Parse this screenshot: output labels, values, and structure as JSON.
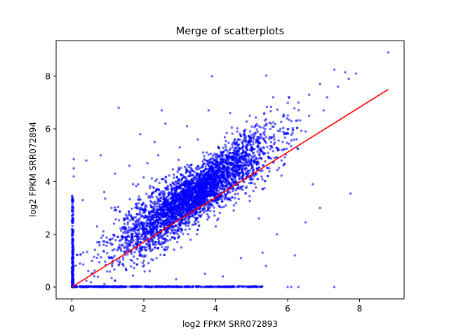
{
  "chart_data": {
    "type": "scatter",
    "title": "Merge of scatterplots",
    "xlabel": "log2 FPKM SRR072893",
    "ylabel": "log2 FPKM SRR072894",
    "xlim": [
      -0.44,
      9.24
    ],
    "ylim": [
      -0.45,
      9.35
    ],
    "xticks": [
      0,
      2,
      4,
      6,
      8
    ],
    "yticks": [
      0,
      2,
      4,
      6,
      8
    ],
    "grid": false,
    "legend": "none",
    "series": [
      {
        "kind": "points",
        "color": "#0000ff",
        "opacity": 0.6,
        "points": [
          [
            8.8,
            8.9
          ],
          [
            7.3,
            8.25
          ],
          [
            7.6,
            8.15
          ],
          [
            7.9,
            8.1
          ],
          [
            7.7,
            7.9
          ],
          [
            7.4,
            7.6
          ],
          [
            6.9,
            7.7
          ],
          [
            6.6,
            7.3
          ],
          [
            7.1,
            7.2
          ],
          [
            6.3,
            7.0
          ],
          [
            6.6,
            6.5
          ],
          [
            7.0,
            6.7
          ],
          [
            3.9,
            8.0
          ],
          [
            5.6,
            7.2
          ],
          [
            5.9,
            6.5
          ],
          [
            6.5,
            5.9
          ],
          [
            6.9,
            3.0
          ],
          [
            7.75,
            3.55
          ],
          [
            6.5,
            2.45
          ],
          [
            7.3,
            0.0
          ],
          [
            6.2,
            1.2
          ],
          [
            5.3,
            1.3
          ],
          [
            5.4,
            0.8
          ],
          [
            6.7,
            3.9
          ],
          [
            1.3,
            6.8
          ],
          [
            2.5,
            6.7
          ],
          [
            2.6,
            6.2
          ],
          [
            3.8,
            6.7
          ],
          [
            4.4,
            6.6
          ],
          [
            1.9,
            5.8
          ],
          [
            2.3,
            5.5
          ],
          [
            3.2,
            6.1
          ],
          [
            0.8,
            5.0
          ],
          [
            0.4,
            4.8
          ],
          [
            1.2,
            4.3
          ],
          [
            0.9,
            3.6
          ],
          [
            0.3,
            3.3
          ],
          [
            1.6,
            4.6
          ],
          [
            4.7,
            1.1
          ],
          [
            3.7,
            0.5
          ],
          [
            2.9,
            0.3
          ],
          [
            4.2,
            0.4
          ],
          [
            5.7,
            2.0
          ],
          [
            5.2,
            2.6
          ],
          [
            0.05,
            4.85
          ],
          [
            0.05,
            4.5
          ],
          [
            0.05,
            4.2
          ],
          [
            6.1,
            0.0
          ],
          [
            6.3,
            0.0
          ],
          [
            6.0,
            0.0
          ],
          [
            4.6,
            5.9
          ],
          [
            5.2,
            6.1
          ],
          [
            4.9,
            5.4
          ],
          [
            5.5,
            5.7
          ],
          [
            5.8,
            6.0
          ],
          [
            6.1,
            6.3
          ],
          [
            4.3,
            5.2
          ],
          [
            2.1,
            4.7
          ],
          [
            1.7,
            3.9
          ],
          [
            2.4,
            5.0
          ],
          [
            3.0,
            5.3
          ],
          [
            3.5,
            5.6
          ],
          [
            1.1,
            3.0
          ],
          [
            0.7,
            2.3
          ],
          [
            2.0,
            1.0
          ],
          [
            2.6,
            1.4
          ],
          [
            3.3,
            1.8
          ],
          [
            4.0,
            2.3
          ],
          [
            4.5,
            2.9
          ],
          [
            1.5,
            0.7
          ]
        ]
      },
      {
        "kind": "trend-cluster",
        "color": "#0000ff",
        "opacity": 0.6,
        "x_range": [
          0.05,
          6.4
        ],
        "slope": 0.9,
        "intercept": 0.45,
        "spread": 0.65,
        "count": 4200
      },
      {
        "kind": "vertical-band",
        "color": "#0000ff",
        "opacity": 0.6,
        "x": 0.0,
        "y_range": [
          0.0,
          3.5
        ],
        "count": 260
      },
      {
        "kind": "horizontal-band",
        "color": "#0000ff",
        "opacity": 0.6,
        "y": 0.0,
        "x_range": [
          0.0,
          5.3
        ],
        "count": 500
      }
    ],
    "fit_line": {
      "color": "#ff0000",
      "from": [
        0.0,
        0.0
      ],
      "to": [
        8.8,
        7.5
      ]
    }
  }
}
